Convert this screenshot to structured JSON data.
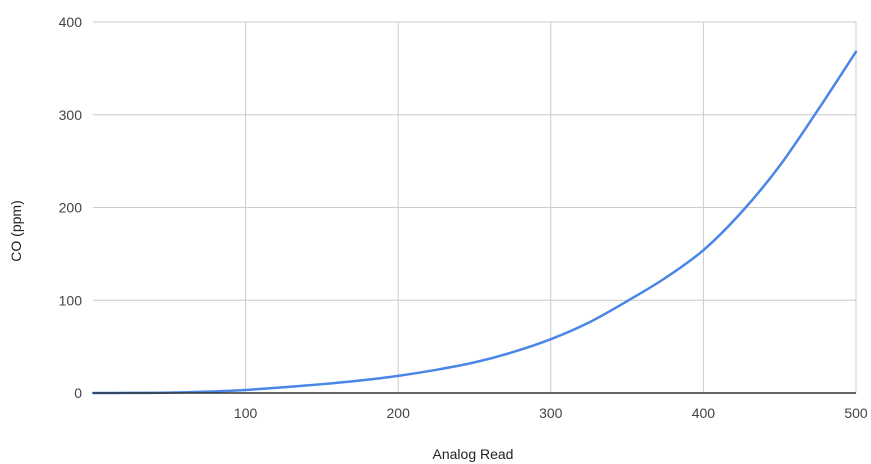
{
  "chart_data": {
    "type": "line",
    "title": "",
    "xlabel": "Analog Read",
    "ylabel": "CO (ppm)",
    "xlim": [
      0,
      500
    ],
    "ylim": [
      0,
      400
    ],
    "x_ticks": [
      100,
      200,
      300,
      400,
      500
    ],
    "y_ticks": [
      0,
      100,
      200,
      300,
      400
    ],
    "grid": true,
    "legend": "none",
    "series": [
      {
        "color": "#4a86e8",
        "x": [
          0,
          25,
          50,
          75,
          100,
          125,
          150,
          175,
          200,
          225,
          250,
          275,
          300,
          325,
          350,
          375,
          400,
          425,
          450,
          475,
          500
        ],
        "y": [
          0,
          0.1,
          0.4,
          1.5,
          3.3,
          6.2,
          9.5,
          13.5,
          18.5,
          25,
          33,
          44,
          58,
          76,
          99,
          124,
          154,
          195,
          245,
          305,
          368
        ]
      }
    ]
  }
}
